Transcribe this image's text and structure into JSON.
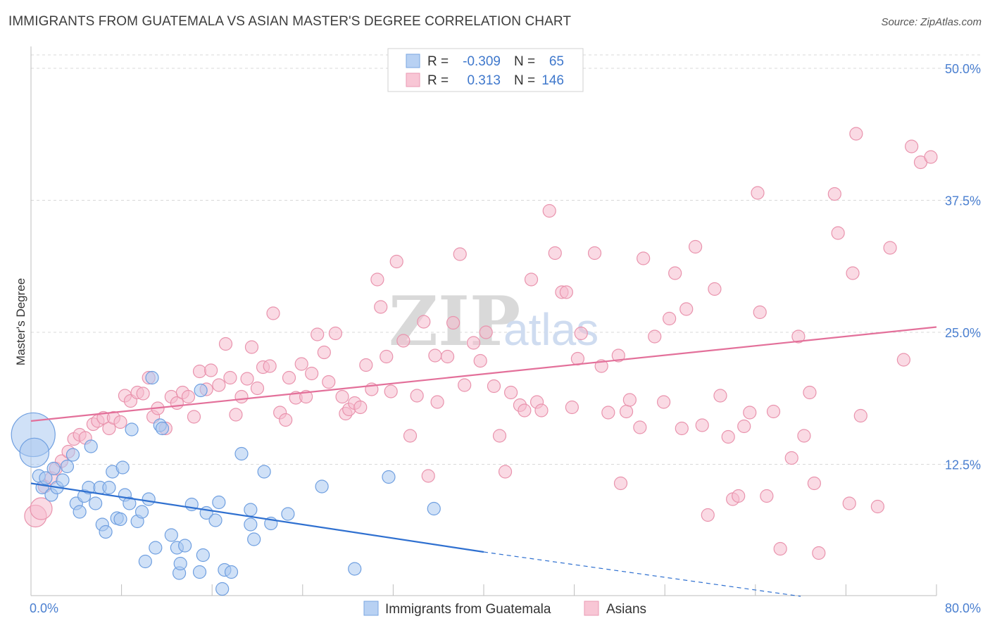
{
  "title": "IMMIGRANTS FROM GUATEMALA VS ASIAN MASTER'S DEGREE CORRELATION CHART",
  "source": "Source: ZipAtlas.com",
  "watermark": {
    "zip": "ZIP",
    "atlas": "atlas"
  },
  "colors": {
    "blue_fill": "#a9c8f0",
    "blue_stroke": "#6f9fe0",
    "blue_line": "#2f70d0",
    "pink_fill": "#f6bccd",
    "pink_stroke": "#e993ad",
    "pink_line": "#e3709a",
    "axis_label": "#4a7fd0",
    "grid": "#d8d8d8"
  },
  "legend": {
    "rows": [
      {
        "r_label": "R =",
        "r_value": "-0.309",
        "n_label": "N =",
        "n_value": "65"
      },
      {
        "r_label": "R =",
        "r_value": "0.313",
        "n_label": "N =",
        "n_value": "146"
      }
    ]
  },
  "bottom_legend": [
    "Immigrants from Guatemala",
    "Asians"
  ],
  "chart_data": {
    "type": "scatter",
    "title": "IMMIGRANTS FROM GUATEMALA VS ASIAN MASTER'S DEGREE CORRELATION CHART",
    "xlabel": "",
    "ylabel": "Master's Degree",
    "xlim": [
      0,
      80
    ],
    "ylim": [
      0,
      50
    ],
    "x_tick_labels": [
      "0.0%",
      "80.0%"
    ],
    "y_ticks": [
      12.5,
      25.0,
      37.5,
      50.0
    ],
    "y_tick_labels": [
      "12.5%",
      "25.0%",
      "37.5%",
      "50.0%"
    ],
    "grid": true,
    "legend_position": "top-center",
    "series": [
      {
        "name": "Immigrants from Guatemala",
        "color": "#a9c8f0",
        "r": -0.309,
        "n": 65,
        "trend": {
          "x": [
            0,
            40
          ],
          "y": [
            10.7,
            4.2
          ],
          "dashed_to": [
            68,
            0
          ]
        },
        "points": [
          [
            0.2,
            15.3,
            3
          ],
          [
            0.3,
            13.6,
            2
          ],
          [
            0.7,
            11.4,
            1
          ],
          [
            1.0,
            10.3,
            1
          ],
          [
            1.3,
            11.2,
            1
          ],
          [
            1.8,
            9.6,
            1
          ],
          [
            2.0,
            12.1,
            1
          ],
          [
            2.3,
            10.3,
            1
          ],
          [
            2.8,
            11.0,
            1
          ],
          [
            3.2,
            12.3,
            1
          ],
          [
            3.7,
            13.4,
            1
          ],
          [
            4.0,
            8.8,
            1
          ],
          [
            4.3,
            8.0,
            1
          ],
          [
            4.7,
            9.5,
            1
          ],
          [
            5.1,
            10.3,
            1
          ],
          [
            5.3,
            14.2,
            1
          ],
          [
            5.7,
            8.8,
            1
          ],
          [
            6.1,
            10.3,
            1
          ],
          [
            6.3,
            6.8,
            1
          ],
          [
            6.6,
            6.1,
            1
          ],
          [
            6.9,
            10.3,
            1
          ],
          [
            7.2,
            11.8,
            1
          ],
          [
            7.6,
            7.4,
            1
          ],
          [
            7.9,
            7.3,
            1
          ],
          [
            8.1,
            12.2,
            1
          ],
          [
            8.3,
            9.6,
            1
          ],
          [
            8.7,
            8.8,
            1
          ],
          [
            8.9,
            15.8,
            1
          ],
          [
            9.4,
            7.1,
            1
          ],
          [
            9.8,
            8.0,
            1
          ],
          [
            10.1,
            3.3,
            1
          ],
          [
            10.4,
            9.2,
            1
          ],
          [
            10.7,
            20.7,
            1
          ],
          [
            11.0,
            4.6,
            1
          ],
          [
            11.4,
            16.2,
            1
          ],
          [
            11.6,
            15.9,
            1
          ],
          [
            12.4,
            5.8,
            1
          ],
          [
            12.9,
            4.6,
            1
          ],
          [
            13.1,
            2.2,
            1
          ],
          [
            13.2,
            3.1,
            1
          ],
          [
            13.6,
            4.8,
            1
          ],
          [
            14.2,
            8.7,
            1
          ],
          [
            14.9,
            2.3,
            1
          ],
          [
            15.0,
            19.5,
            1
          ],
          [
            15.2,
            3.9,
            1
          ],
          [
            15.5,
            7.9,
            1
          ],
          [
            16.3,
            7.2,
            1
          ],
          [
            16.6,
            8.9,
            1
          ],
          [
            16.9,
            0.7,
            1
          ],
          [
            17.1,
            2.5,
            1
          ],
          [
            17.7,
            2.3,
            1
          ],
          [
            18.6,
            13.5,
            1
          ],
          [
            19.4,
            6.8,
            1
          ],
          [
            19.4,
            8.2,
            1
          ],
          [
            19.7,
            5.4,
            1
          ],
          [
            20.6,
            11.8,
            1
          ],
          [
            21.2,
            6.9,
            1
          ],
          [
            22.7,
            7.8,
            1
          ],
          [
            25.7,
            10.4,
            1
          ],
          [
            28.6,
            2.6,
            1
          ],
          [
            31.6,
            11.3,
            1
          ],
          [
            35.6,
            8.3,
            1
          ]
        ]
      },
      {
        "name": "Asians",
        "color": "#f6bccd",
        "r": 0.313,
        "n": 146,
        "trend": {
          "x": [
            0,
            80
          ],
          "y": [
            16.6,
            25.5
          ]
        },
        "points": [
          [
            0.4,
            7.6,
            1.5
          ],
          [
            0.9,
            8.3,
            1.5
          ],
          [
            1.2,
            10.4,
            1
          ],
          [
            1.8,
            11.2,
            1
          ],
          [
            2.2,
            12.1,
            1
          ],
          [
            2.7,
            12.8,
            1
          ],
          [
            3.3,
            13.7,
            1
          ],
          [
            3.8,
            14.9,
            1
          ],
          [
            4.3,
            15.3,
            1
          ],
          [
            4.8,
            15.0,
            1
          ],
          [
            5.5,
            16.3,
            1
          ],
          [
            5.9,
            16.6,
            1
          ],
          [
            6.4,
            16.9,
            1
          ],
          [
            6.9,
            15.9,
            1
          ],
          [
            7.3,
            16.9,
            1
          ],
          [
            7.9,
            16.5,
            1
          ],
          [
            8.3,
            19.0,
            1
          ],
          [
            8.8,
            18.5,
            1
          ],
          [
            9.4,
            19.3,
            1
          ],
          [
            9.9,
            19.2,
            1
          ],
          [
            10.4,
            20.7,
            1
          ],
          [
            10.8,
            17.0,
            1
          ],
          [
            11.2,
            17.8,
            1
          ],
          [
            11.9,
            15.9,
            1
          ],
          [
            12.4,
            18.9,
            1
          ],
          [
            12.9,
            18.3,
            1
          ],
          [
            13.4,
            19.3,
            1
          ],
          [
            13.9,
            18.9,
            1
          ],
          [
            14.4,
            17.0,
            1
          ],
          [
            14.9,
            21.3,
            1
          ],
          [
            15.5,
            19.6,
            1
          ],
          [
            15.9,
            21.4,
            1
          ],
          [
            16.6,
            20.0,
            1
          ],
          [
            17.2,
            23.9,
            1
          ],
          [
            17.6,
            20.7,
            1
          ],
          [
            18.1,
            17.2,
            1
          ],
          [
            18.6,
            18.9,
            1
          ],
          [
            19.1,
            20.6,
            1
          ],
          [
            19.5,
            23.6,
            1
          ],
          [
            20.0,
            19.7,
            1
          ],
          [
            20.5,
            21.7,
            1
          ],
          [
            21.1,
            21.8,
            1
          ],
          [
            21.4,
            26.8,
            1
          ],
          [
            22.0,
            17.4,
            1
          ],
          [
            22.5,
            16.7,
            1
          ],
          [
            22.8,
            20.7,
            1
          ],
          [
            23.4,
            18.8,
            1
          ],
          [
            23.9,
            22.0,
            1
          ],
          [
            24.3,
            18.9,
            1
          ],
          [
            24.8,
            21.1,
            1
          ],
          [
            25.3,
            24.8,
            1
          ],
          [
            25.9,
            23.1,
            1
          ],
          [
            26.3,
            20.3,
            1
          ],
          [
            26.9,
            24.9,
            1
          ],
          [
            27.5,
            18.9,
            1
          ],
          [
            27.8,
            17.3,
            1
          ],
          [
            28.1,
            17.7,
            1
          ],
          [
            28.6,
            18.3,
            1
          ],
          [
            29.1,
            17.9,
            1
          ],
          [
            29.6,
            21.9,
            1
          ],
          [
            30.1,
            19.6,
            1
          ],
          [
            30.6,
            30.0,
            1
          ],
          [
            30.9,
            27.4,
            1
          ],
          [
            31.4,
            22.7,
            1
          ],
          [
            31.8,
            19.4,
            1
          ],
          [
            32.3,
            31.7,
            1
          ],
          [
            32.9,
            24.2,
            1
          ],
          [
            33.5,
            15.2,
            1
          ],
          [
            34.1,
            19.0,
            1
          ],
          [
            34.7,
            26.0,
            1
          ],
          [
            35.1,
            11.4,
            1
          ],
          [
            35.7,
            22.8,
            1
          ],
          [
            35.9,
            18.4,
            1
          ],
          [
            36.8,
            22.7,
            1
          ],
          [
            37.3,
            25.9,
            1
          ],
          [
            37.9,
            32.4,
            1
          ],
          [
            38.3,
            20.0,
            1
          ],
          [
            39.1,
            24.0,
            1
          ],
          [
            39.7,
            22.3,
            1
          ],
          [
            40.2,
            25.0,
            1
          ],
          [
            40.9,
            19.9,
            1
          ],
          [
            41.4,
            15.2,
            1
          ],
          [
            41.9,
            11.8,
            1
          ],
          [
            42.4,
            19.3,
            1
          ],
          [
            43.2,
            18.1,
            1
          ],
          [
            43.6,
            17.6,
            1
          ],
          [
            44.2,
            30.0,
            1
          ],
          [
            44.7,
            18.4,
            1
          ],
          [
            45.1,
            17.6,
            1
          ],
          [
            45.8,
            36.5,
            1
          ],
          [
            46.3,
            32.5,
            1
          ],
          [
            46.9,
            28.8,
            1
          ],
          [
            47.3,
            28.8,
            1
          ],
          [
            47.8,
            17.9,
            1
          ],
          [
            48.3,
            22.5,
            1
          ],
          [
            48.6,
            24.9,
            1
          ],
          [
            49.8,
            32.5,
            1
          ],
          [
            50.4,
            21.8,
            1
          ],
          [
            51.0,
            17.4,
            1
          ],
          [
            51.9,
            22.8,
            1
          ],
          [
            52.1,
            10.7,
            1
          ],
          [
            52.6,
            17.5,
            1
          ],
          [
            52.9,
            18.6,
            1
          ],
          [
            53.8,
            16.0,
            1
          ],
          [
            54.1,
            32.0,
            1
          ],
          [
            55.1,
            24.6,
            1
          ],
          [
            55.9,
            18.4,
            1
          ],
          [
            56.4,
            26.3,
            1
          ],
          [
            56.9,
            30.6,
            1
          ],
          [
            57.5,
            15.9,
            1
          ],
          [
            57.9,
            27.2,
            1
          ],
          [
            58.7,
            33.1,
            1
          ],
          [
            59.3,
            16.2,
            1
          ],
          [
            59.8,
            7.7,
            1
          ],
          [
            60.4,
            29.1,
            1
          ],
          [
            60.9,
            19.0,
            1
          ],
          [
            61.6,
            15.1,
            1
          ],
          [
            62.0,
            9.2,
            1
          ],
          [
            62.5,
            9.5,
            1
          ],
          [
            63.0,
            16.1,
            1
          ],
          [
            63.5,
            17.4,
            1
          ],
          [
            64.2,
            38.2,
            1
          ],
          [
            64.4,
            26.9,
            1
          ],
          [
            65.0,
            9.5,
            1
          ],
          [
            65.6,
            17.5,
            1
          ],
          [
            66.2,
            4.5,
            1
          ],
          [
            67.2,
            13.1,
            1
          ],
          [
            67.8,
            24.6,
            1
          ],
          [
            68.3,
            15.2,
            1
          ],
          [
            68.8,
            19.3,
            1
          ],
          [
            69.2,
            10.7,
            1
          ],
          [
            69.6,
            4.1,
            1
          ],
          [
            71.0,
            38.1,
            1
          ],
          [
            71.3,
            34.4,
            1
          ],
          [
            72.3,
            8.8,
            1
          ],
          [
            72.6,
            30.6,
            1
          ],
          [
            72.9,
            43.8,
            1
          ],
          [
            73.3,
            17.1,
            1
          ],
          [
            74.8,
            8.5,
            1
          ],
          [
            75.9,
            33.0,
            1
          ],
          [
            77.1,
            22.4,
            1
          ],
          [
            77.8,
            42.6,
            1
          ],
          [
            78.6,
            41.1,
            1
          ],
          [
            79.5,
            41.6,
            1
          ]
        ]
      }
    ]
  }
}
